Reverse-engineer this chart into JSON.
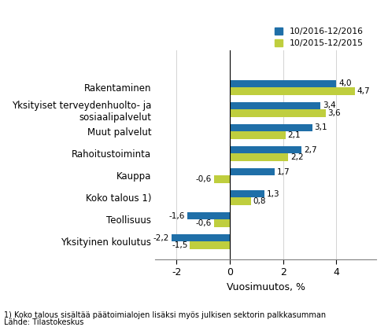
{
  "categories": [
    "Rakentaminen",
    "Yksityiset terveydenhuolto- ja\nsosiaalipalvelut",
    "Muut palvelut",
    "Rahoitustoiminta",
    "Kauppa",
    "Koko talous 1)",
    "Teollisuus",
    "Yksityinen koulutus"
  ],
  "values_2016": [
    4.0,
    3.4,
    3.1,
    2.7,
    1.7,
    1.3,
    -1.6,
    -2.2
  ],
  "values_2015": [
    4.7,
    3.6,
    2.1,
    2.2,
    -0.6,
    0.8,
    -0.6,
    -1.5
  ],
  "color_2016": "#1F6FA8",
  "color_2015": "#BFCE3E",
  "xlabel": "Vuosimuutos, %",
  "legend_2016": "10/2016-12/2016",
  "legend_2015": "10/2015-12/2015",
  "xlim": [
    -2.8,
    5.5
  ],
  "xticks": [
    -2,
    0,
    2,
    4
  ],
  "footnote1": "1) Koko talous sisältää päätoimialojen lisäksi myös julkisen sektorin palkkasumman",
  "footnote2": "Lähde: Tilastokeskus"
}
